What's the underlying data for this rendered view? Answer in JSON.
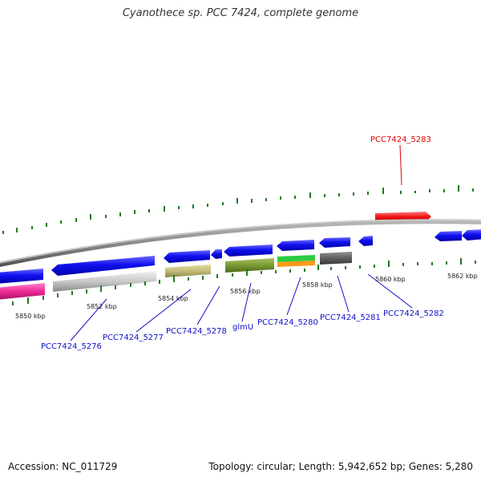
{
  "title": "Cyanothece sp. PCC 7424, complete genome",
  "footer": {
    "accession": "Accession: NC_011729",
    "summary": "Topology: circular; Length: 5,942,652 bp; Genes: 5,280"
  },
  "scale_labels": [
    "5850 kbp",
    "5852 kbp",
    "5854 kbp",
    "5856 kbp",
    "5858 kbp",
    "5860 kbp",
    "5862 kbp"
  ],
  "gene_labels": {
    "pcc7424_5276": "PCC7424_5276",
    "pcc7424_5277": "PCC7424_5277",
    "pcc7424_5278": "PCC7424_5278",
    "glmU": "glmU",
    "pcc7424_5280": "PCC7424_5280",
    "pcc7424_5281": "PCC7424_5281",
    "pcc7424_5282": "PCC7424_5282",
    "pcc7424_5283": "PCC7424_5283"
  },
  "colors": {
    "forward_strand": "#0a0ae6",
    "highlight_gene": "#ee1111",
    "backbone": "#8a8a8a",
    "gc_tick": "#227a22",
    "label_blue": "#1010c8",
    "label_red": "#dd0000"
  }
}
